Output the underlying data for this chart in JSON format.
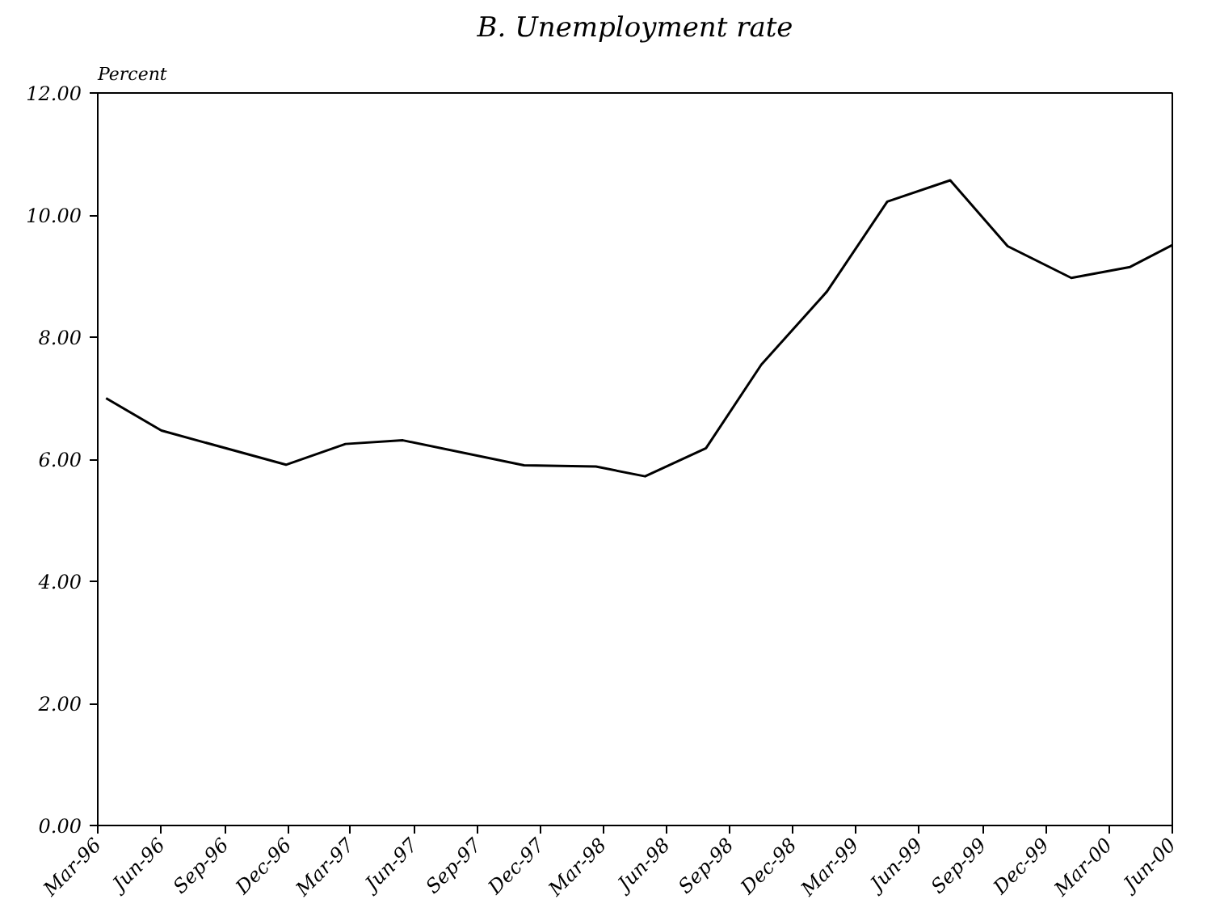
{
  "chart_data": {
    "type": "line",
    "title": "B. Unemployment rate",
    "ylabel": "Percent",
    "x": [
      "1996-03-13",
      "1996-06-01",
      "1996-11-28",
      "1997-02-22",
      "1997-05-16",
      "1997-11-07",
      "1998-02-19",
      "1998-05-01",
      "1998-07-28",
      "1998-10-16",
      "1999-01-19",
      "1999-04-16",
      "1999-07-16",
      "1999-10-07",
      "2000-01-07",
      "2000-04-01",
      "2000-06-01"
    ],
    "series": [
      {
        "color": "#000000",
        "values": [
          7.0,
          6.47,
          5.91,
          6.25,
          6.31,
          5.9,
          5.88,
          5.72,
          6.18,
          7.55,
          8.75,
          10.22,
          10.57,
          9.49,
          8.97,
          9.15,
          9.51
        ]
      }
    ],
    "xlim": [
      "1996-03-01",
      "2000-06-01"
    ],
    "xticks": [
      {
        "value": "1996-03-01",
        "label": "Mar-96"
      },
      {
        "value": "1996-06-01",
        "label": "Jun-96"
      },
      {
        "value": "1996-09-01",
        "label": "Sep-96"
      },
      {
        "value": "1996-12-01",
        "label": "Dec-96"
      },
      {
        "value": "1997-03-01",
        "label": "Mar-97"
      },
      {
        "value": "1997-06-01",
        "label": "Jun-97"
      },
      {
        "value": "1997-09-01",
        "label": "Sep-97"
      },
      {
        "value": "1997-12-01",
        "label": "Dec-97"
      },
      {
        "value": "1998-03-01",
        "label": "Mar-98"
      },
      {
        "value": "1998-06-01",
        "label": "Jun-98"
      },
      {
        "value": "1998-09-01",
        "label": "Sep-98"
      },
      {
        "value": "1998-12-01",
        "label": "Dec-98"
      },
      {
        "value": "1999-03-01",
        "label": "Mar-99"
      },
      {
        "value": "1999-06-01",
        "label": "Jun-99"
      },
      {
        "value": "1999-09-01",
        "label": "Sep-99"
      },
      {
        "value": "1999-12-01",
        "label": "Dec-99"
      },
      {
        "value": "2000-03-01",
        "label": "Mar-00"
      },
      {
        "value": "2000-06-01",
        "label": "Jun-00"
      }
    ],
    "ylim": [
      0,
      12
    ],
    "yticks": [
      {
        "value": 0,
        "label": "0.00"
      },
      {
        "value": 2,
        "label": "2.00"
      },
      {
        "value": 4,
        "label": "4.00"
      },
      {
        "value": 6,
        "label": "6.00"
      },
      {
        "value": 8,
        "label": "8.00"
      },
      {
        "value": 10,
        "label": "10.00"
      },
      {
        "value": 12,
        "label": "12.00"
      }
    ],
    "grid": false,
    "marker": "none",
    "line_style": "solid"
  }
}
